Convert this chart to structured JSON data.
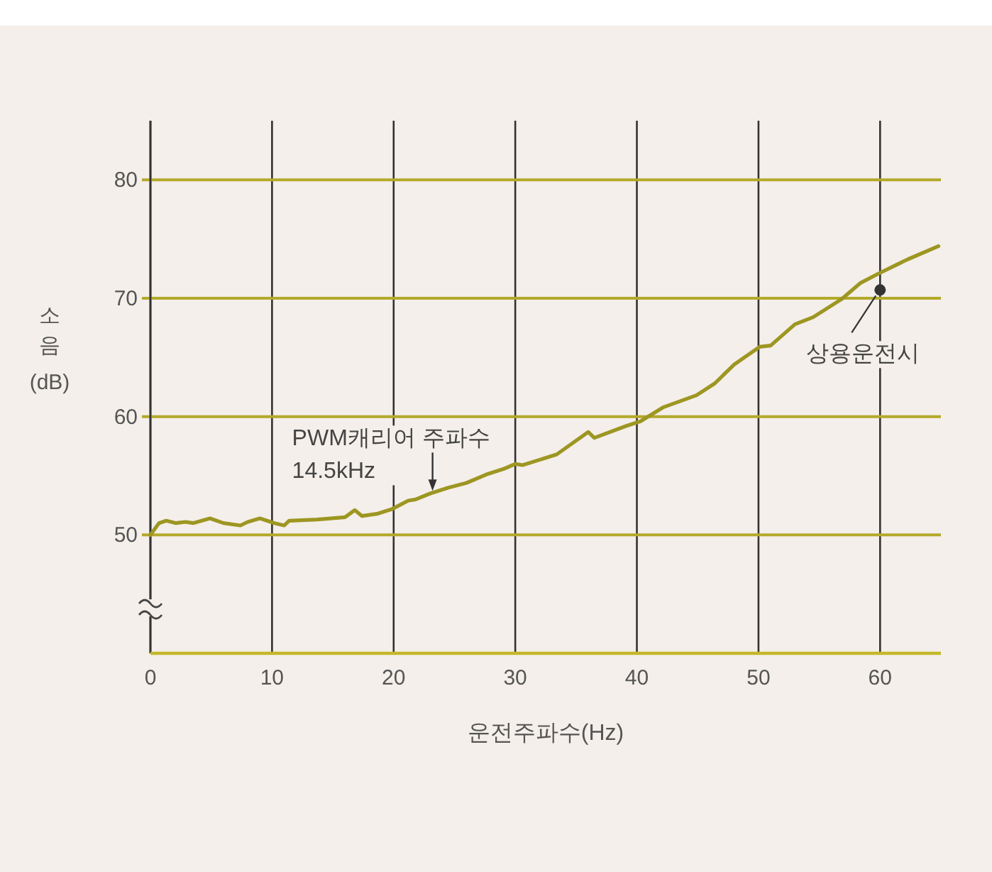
{
  "chart_data": {
    "type": "line",
    "xlabel": "운전주파수(Hz)",
    "ylabel": "소음 (dB)",
    "x": [
      0,
      0.7,
      1.3,
      2.1,
      2.9,
      3.5,
      4.9,
      6.0,
      7.4,
      8.0,
      9.0,
      10.2,
      11.0,
      11.4,
      13.7,
      16.0,
      16.8,
      17.4,
      18.7,
      19.9,
      21.2,
      21.8,
      23.0,
      24.5,
      26.0,
      27.6,
      29.1,
      30.0,
      30.6,
      33.4,
      36.0,
      36.5,
      39.1,
      40.3,
      42.2,
      44.9,
      46.4,
      48.0,
      50.1,
      51.0,
      53.0,
      54.5,
      56.8,
      58.4,
      59.9,
      62.3,
      64.8
    ],
    "values": [
      50.0,
      51.0,
      51.2,
      51.0,
      51.1,
      51.0,
      51.4,
      51.0,
      50.8,
      51.1,
      51.4,
      51.0,
      50.8,
      51.2,
      51.3,
      51.5,
      52.1,
      51.6,
      51.8,
      52.2,
      52.9,
      53.0,
      53.5,
      54.0,
      54.4,
      55.1,
      55.6,
      56.0,
      55.9,
      56.8,
      58.7,
      58.2,
      59.2,
      59.6,
      60.8,
      61.8,
      62.8,
      64.4,
      65.9,
      66.0,
      67.8,
      68.4,
      69.9,
      71.3,
      72.1,
      73.3,
      74.4
    ],
    "color": "#9d9622",
    "line_style": "solid",
    "xlim": [
      0,
      65
    ],
    "ylim": [
      40,
      85
    ],
    "xticks": [
      0,
      10,
      20,
      30,
      40,
      50,
      60
    ],
    "yticks": [
      50,
      60,
      70,
      80
    ],
    "grid": true,
    "annotations": [
      {
        "text": "PWM캐리어 주파수 14.5kHz",
        "x": 23.2,
        "y": 53.6
      },
      {
        "text": "상용운전시",
        "x": 60,
        "y": 70.7
      }
    ]
  }
}
